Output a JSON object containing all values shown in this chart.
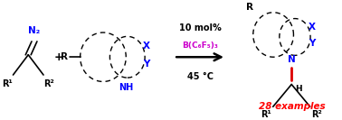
{
  "background_color": "#ffffff",
  "figsize": [
    3.78,
    1.33
  ],
  "dpi": 100,
  "diazo_label": "N₂",
  "diazo_color": "#0000ff",
  "r1_label": "R¹",
  "r2_label": "R²",
  "r_label": "R",
  "plus_symbol": "+",
  "arrow_text1": "10 mol%",
  "arrow_text2": "B(C₆F₅)₃",
  "arrow_text2_color": "#cc00cc",
  "arrow_text3": "45 °C",
  "x_label": "X",
  "y_label": "Y",
  "nh_label": "NH",
  "n_label": "N",
  "h_label": "H",
  "x_color": "#0000ff",
  "y_color": "#0000ff",
  "n_color": "#0000ff",
  "nh_color": "#0000ff",
  "bond_red_color": "#dd0000",
  "examples_text": "28 examples",
  "examples_color": "#ff0000",
  "black": "#000000"
}
